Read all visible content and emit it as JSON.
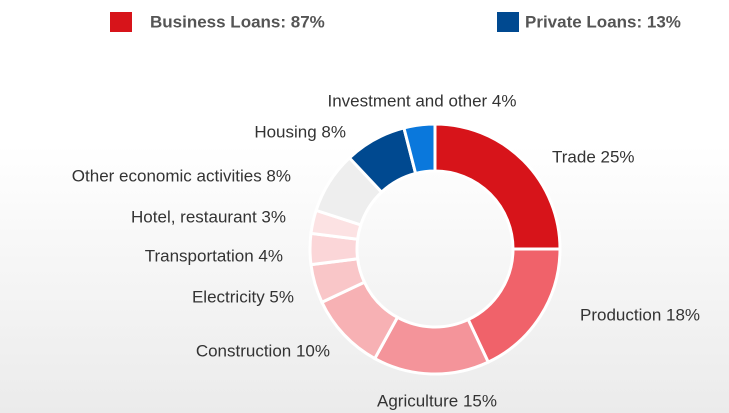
{
  "chart_data": {
    "type": "donut",
    "legend": [
      {
        "label": "Business Loans: 87%",
        "color": "#d7141a"
      },
      {
        "label": "Private Loans: 13%",
        "color": "#004990"
      }
    ],
    "categories": [
      "Trade",
      "Production",
      "Agriculture",
      "Construction",
      "Electricity",
      "Transportation",
      "Hotel, restaurant",
      "Other economic activities",
      "Housing",
      "Investment and other"
    ],
    "values": [
      25,
      18,
      15,
      10,
      5,
      4,
      3,
      8,
      8,
      4
    ],
    "value_labels": [
      "Trade 25%",
      "Production 18%",
      "Agriculture 15%",
      "Construction 10%",
      "Electricity 5%",
      "Transportation 4%",
      "Hotel, restaurant 3%",
      "Other economic activities 8%",
      "Housing 8%",
      "Investment and other 4%"
    ],
    "colors": [
      "#d7141a",
      "#f0626a",
      "#f4949a",
      "#f7b1b4",
      "#f9c6c8",
      "#fbd6d8",
      "#fce2e3",
      "#eeeeee",
      "#004990",
      "#0a78dc"
    ]
  }
}
